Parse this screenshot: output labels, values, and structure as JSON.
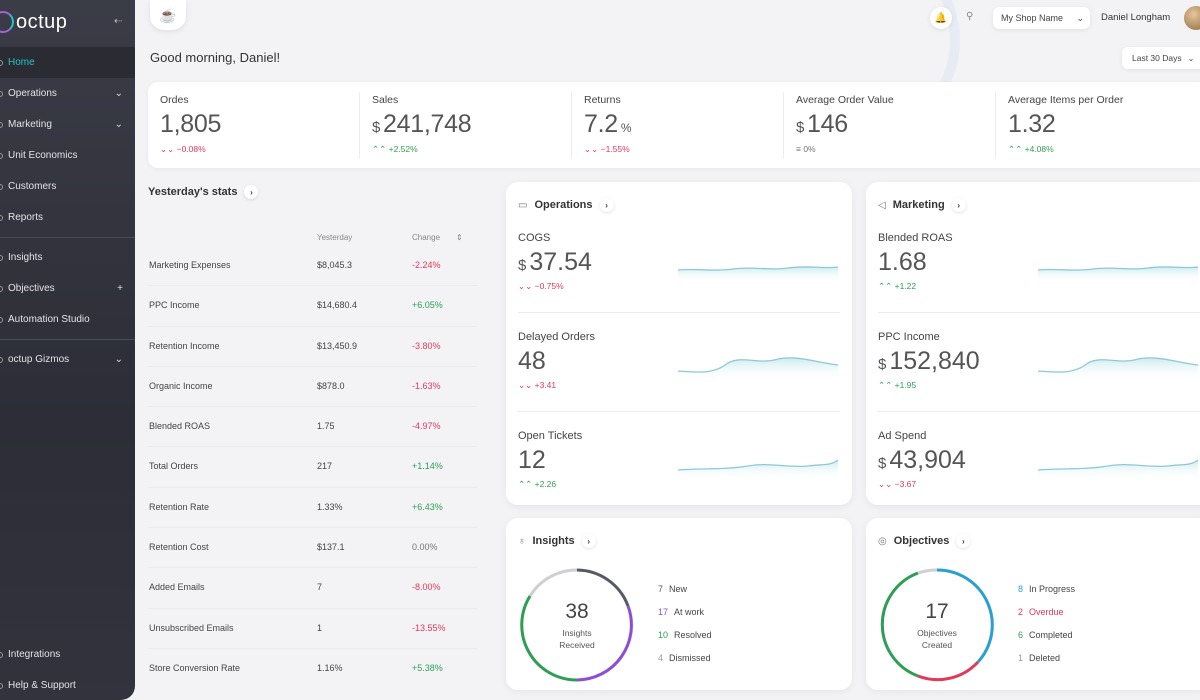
{
  "app": {
    "brand": "octup"
  },
  "sidebar": {
    "items": [
      {
        "label": "Home",
        "active": true
      },
      {
        "label": "Operations",
        "chevron": "⌄"
      },
      {
        "label": "Marketing",
        "chevron": "⌄"
      },
      {
        "label": "Unit Economics"
      },
      {
        "label": "Customers"
      },
      {
        "label": "Reports"
      },
      {
        "label": "Insights"
      },
      {
        "label": "Objectives",
        "chevron": "+"
      },
      {
        "label": "Automation Studio"
      },
      {
        "label": "octup Gizmos",
        "chevron": "⌄"
      }
    ],
    "bottom_items": [
      {
        "label": "Integrations"
      },
      {
        "label": "Help & Support"
      }
    ]
  },
  "topbar": {
    "shop_name": "My Shop Name",
    "user_name": "Daniel Longham"
  },
  "greeting": "Good morning, Daniel!",
  "date_range": "Last 30 Days",
  "kpis": [
    {
      "label": "Ordes",
      "currency": "",
      "value": "1,805",
      "unit": "",
      "change": "−0.08%",
      "direction": "down"
    },
    {
      "label": "Sales",
      "currency": "$",
      "value": "241,748",
      "unit": "",
      "change": "+2.52%",
      "direction": "up"
    },
    {
      "label": "Returns",
      "currency": "",
      "value": "7.2",
      "unit": "%",
      "change": "−1.55%",
      "direction": "down"
    },
    {
      "label": "Average Order Value",
      "currency": "$",
      "value": "146",
      "unit": "",
      "change": "0%",
      "direction": "neutral"
    },
    {
      "label": "Average Items per Order",
      "currency": "",
      "value": "1.32",
      "unit": "",
      "change": "+4.08%",
      "direction": "up"
    }
  ],
  "yesterday_stats": {
    "title": "Yesterday's stats",
    "col_yesterday": "Yesterday",
    "col_change": "Change",
    "rows": [
      {
        "metric": "Marketing Expenses",
        "yesterday": "$8,045.3",
        "change": "-2.24%",
        "direction": "down"
      },
      {
        "metric": "PPC Income",
        "yesterday": "$14,680.4",
        "change": "+6.05%",
        "direction": "up"
      },
      {
        "metric": "Retention Income",
        "yesterday": "$13,450.9",
        "change": "-3.80%",
        "direction": "down"
      },
      {
        "metric": "Organic Income",
        "yesterday": "$878.0",
        "change": "-1.63%",
        "direction": "down"
      },
      {
        "metric": "Blended ROAS",
        "yesterday": "1.75",
        "change": "-4.97%",
        "direction": "down"
      },
      {
        "metric": "Total Orders",
        "yesterday": "217",
        "change": "+1.14%",
        "direction": "up"
      },
      {
        "metric": "Retention Rate",
        "yesterday": "1.33%",
        "change": "+6.43%",
        "direction": "up"
      },
      {
        "metric": "Retention Cost",
        "yesterday": "$137.1",
        "change": "0.00%",
        "direction": "neutral"
      },
      {
        "metric": "Added Emails",
        "yesterday": "7",
        "change": "-8.00%",
        "direction": "down"
      },
      {
        "metric": "Unsubscribed Emails",
        "yesterday": "1",
        "change": "-13.55%",
        "direction": "down"
      },
      {
        "metric": "Store Conversion Rate",
        "yesterday": "1.16%",
        "change": "+5.38%",
        "direction": "up"
      }
    ]
  },
  "operations": {
    "title": "Operations",
    "metrics": [
      {
        "label": "COGS",
        "currency": "$",
        "value": "37.54",
        "change": "−0.75%",
        "direction": "down"
      },
      {
        "label": "Delayed Orders",
        "currency": "",
        "value": "48",
        "change": "+3.41",
        "direction": "down"
      },
      {
        "label": "Open Tickets",
        "currency": "",
        "value": "12",
        "change": "+2.26",
        "direction": "up"
      }
    ]
  },
  "marketing": {
    "title": "Marketing",
    "metrics": [
      {
        "label": "Blended ROAS",
        "currency": "",
        "value": "1.68",
        "change": "+1.22",
        "direction": "up"
      },
      {
        "label": "PPC Income",
        "currency": "$",
        "value": "152,840",
        "change": "+1.95",
        "direction": "up"
      },
      {
        "label": "Ad Spend",
        "currency": "$",
        "value": "43,904",
        "change": "−3.67",
        "direction": "down"
      }
    ]
  },
  "insights": {
    "title": "Insights",
    "total": "38",
    "center_label_1": "Insights",
    "center_label_2": "Received",
    "legend": [
      {
        "count": "7",
        "label": "New"
      },
      {
        "count": "17",
        "label": "At work"
      },
      {
        "count": "10",
        "label": "Resolved"
      },
      {
        "count": "4",
        "label": "Dismissed"
      }
    ]
  },
  "objectives": {
    "title": "Objectives",
    "total": "17",
    "center_label_1": "Objectives",
    "center_label_2": "Created",
    "legend": [
      {
        "count": "8",
        "label": "In Progress"
      },
      {
        "count": "2",
        "label": "Overdue"
      },
      {
        "count": "6",
        "label": "Completed"
      },
      {
        "count": "1",
        "label": "Deleted"
      }
    ]
  },
  "colors": {
    "accent": "#22c4c8",
    "up": "#2f9e55",
    "down": "#e0395a",
    "purple": "#8b4fd6"
  }
}
